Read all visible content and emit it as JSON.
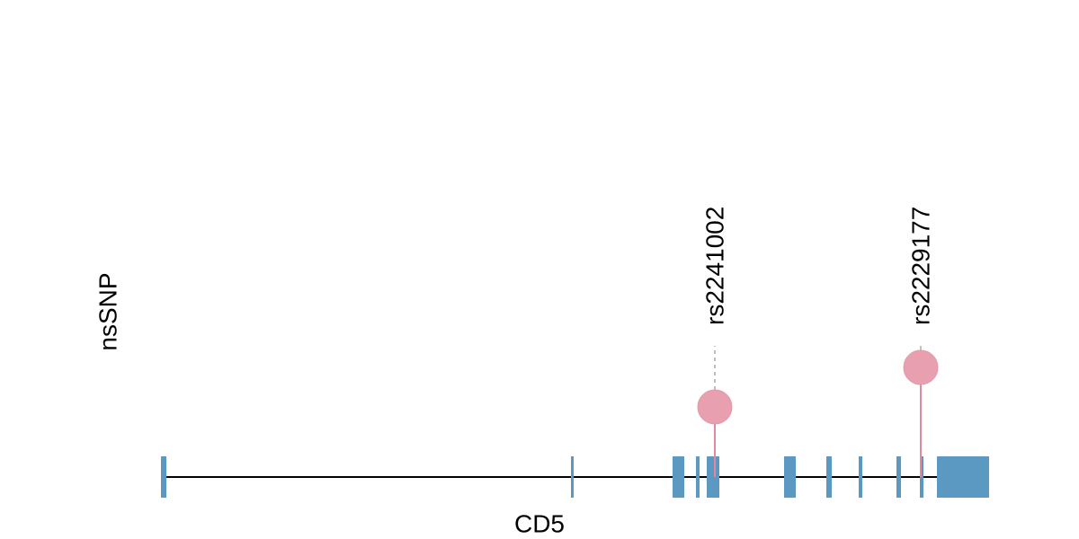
{
  "track_label": "nsSNP",
  "gene": {
    "label": "CD5"
  },
  "snps": [
    {
      "label": "rs2241002"
    },
    {
      "label": "rs2229177"
    }
  ]
}
